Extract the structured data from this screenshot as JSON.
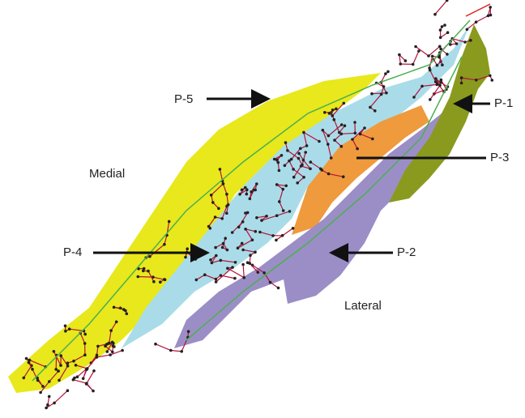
{
  "regions": [
    {
      "label": "P-5"
    },
    {
      "label": "P-1"
    },
    {
      "label": "P-3"
    },
    {
      "label": "P-4"
    },
    {
      "label": "P-2"
    }
  ],
  "orientation": {
    "medial": "Medial",
    "lateral": "Lateral"
  }
}
